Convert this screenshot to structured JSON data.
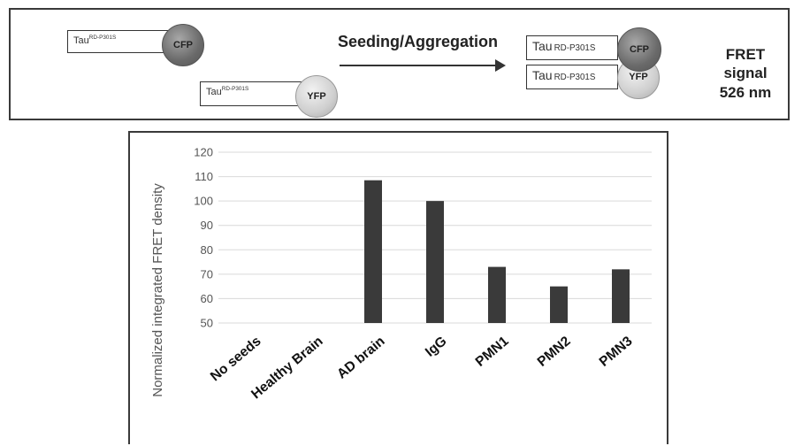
{
  "schematic": {
    "tau_label": "Tau",
    "tau_superscript": "RD-P301S",
    "cfp_label": "CFP",
    "yfp_label": "YFP",
    "arrow_label": "Seeding/Aggregation",
    "fret_line1": "FRET signal",
    "fret_line2": "526 nm"
  },
  "chart_data": {
    "type": "bar",
    "categories": [
      "No seeds",
      "Healthy Brain",
      "AD brain",
      "IgG",
      "PMN1",
      "PMN2",
      "PMN3"
    ],
    "values": [
      null,
      null,
      108.5,
      100,
      73,
      65,
      72
    ],
    "ylabel": "Normalized integrated FRET density",
    "ylim": [
      50,
      120
    ],
    "yticks": [
      50,
      60,
      70,
      80,
      90,
      100,
      110,
      120
    ],
    "grid": true,
    "bar_color": "#3a3a3a"
  }
}
